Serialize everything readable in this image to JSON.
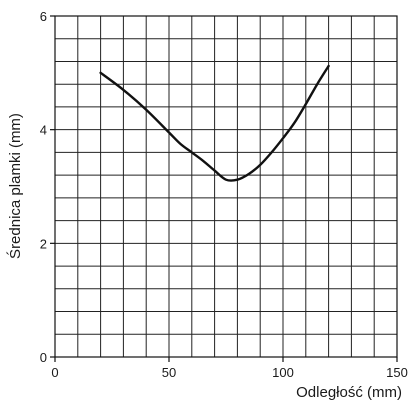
{
  "chart_data": {
    "type": "line",
    "xlabel": "Odległość (mm)",
    "ylabel": "Średnica plamki (mm)",
    "xlim": [
      0,
      150
    ],
    "ylim": [
      0,
      6
    ],
    "grid": true,
    "x_ticks": [
      0,
      50,
      100,
      150
    ],
    "y_ticks": [
      0,
      2,
      4,
      6
    ],
    "x_minor_step": 10,
    "y_minor_step": 0.4,
    "series": [
      {
        "color": "#111111",
        "points": [
          [
            20,
            5.0
          ],
          [
            30,
            4.7
          ],
          [
            40,
            4.35
          ],
          [
            50,
            3.95
          ],
          [
            55,
            3.75
          ],
          [
            60,
            3.6
          ],
          [
            65,
            3.45
          ],
          [
            70,
            3.28
          ],
          [
            75,
            3.12
          ],
          [
            80,
            3.12
          ],
          [
            85,
            3.22
          ],
          [
            90,
            3.38
          ],
          [
            95,
            3.6
          ],
          [
            100,
            3.85
          ],
          [
            105,
            4.12
          ],
          [
            110,
            4.45
          ],
          [
            115,
            4.8
          ],
          [
            120,
            5.12
          ]
        ]
      }
    ]
  }
}
